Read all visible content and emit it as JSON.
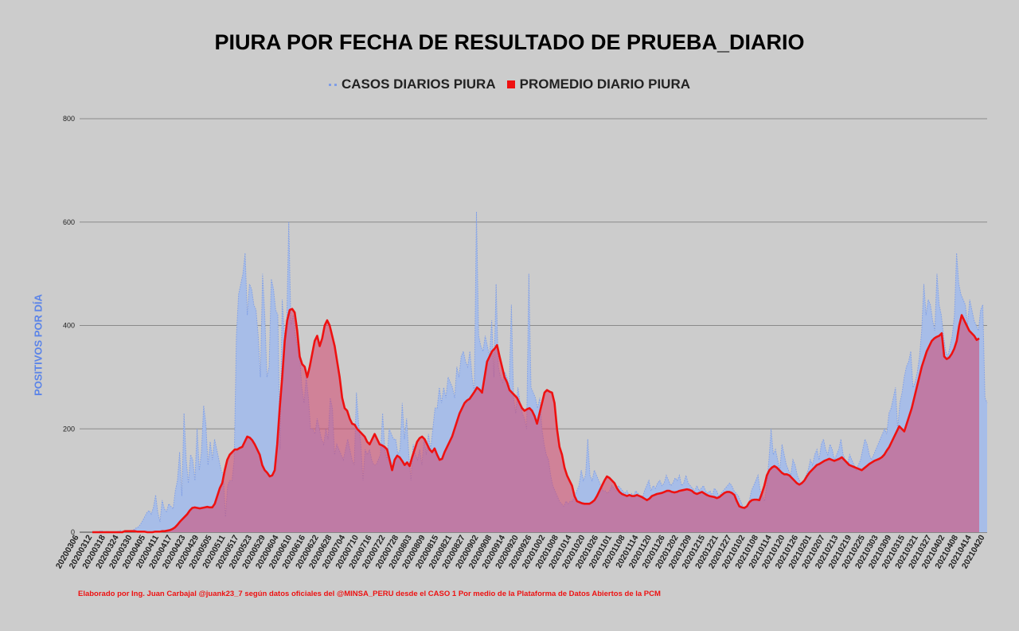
{
  "chart_data": {
    "type": "area",
    "title": "PIURA POR FECHA DE RESULTADO DE PRUEBA_DIARIO",
    "ylabel": "POSITIVOS POR DÍA",
    "xlabel": "",
    "ylim": [
      0,
      800
    ],
    "yticks": [
      0,
      200,
      400,
      600,
      800
    ],
    "grid": true,
    "legend_position": "top-center",
    "x_tick_labels": [
      "20200306",
      "20200312",
      "20200318",
      "20200324",
      "20200330",
      "20200405",
      "20200411",
      "20200417",
      "20200423",
      "20200429",
      "20200505",
      "20200511",
      "20200517",
      "20200523",
      "20200529",
      "20200604",
      "20200610",
      "20200616",
      "20200622",
      "20200628",
      "20200704",
      "20200710",
      "20200716",
      "20200722",
      "20200728",
      "20200803",
      "20200809",
      "20200815",
      "20200821",
      "20200827",
      "20200902",
      "20200908",
      "20200914",
      "20200920",
      "20200926",
      "20201002",
      "20201008",
      "20201014",
      "20201020",
      "20201026",
      "20201101",
      "20201108",
      "20201114",
      "20201120",
      "20201126",
      "20201202",
      "20201209",
      "20201215",
      "20201221",
      "20201227",
      "20210102",
      "20210108",
      "20210114",
      "20210120",
      "20210126",
      "20210201",
      "20210207",
      "20210213",
      "20210219",
      "20210225",
      "20210303",
      "20210309",
      "20210315",
      "20210321",
      "20210327",
      "20210402",
      "20210408",
      "20210414",
      "20210420"
    ],
    "series": [
      {
        "name": "CASOS DIARIOS PIURA",
        "color": "#7f9ee6",
        "style": "dotted-area",
        "values": [
          0,
          0,
          0,
          1,
          3,
          1,
          0,
          2,
          0,
          0,
          0,
          0,
          2,
          3,
          1,
          1,
          2,
          2,
          3,
          5,
          8,
          10,
          15,
          22,
          30,
          38,
          42,
          35,
          48,
          72,
          38,
          20,
          62,
          45,
          40,
          55,
          50,
          45,
          80,
          100,
          155,
          70,
          230,
          140,
          95,
          150,
          140,
          100,
          200,
          120,
          155,
          245,
          210,
          130,
          175,
          140,
          180,
          160,
          140,
          120,
          110,
          30,
          90,
          100,
          100,
          140,
          380,
          460,
          480,
          500,
          540,
          420,
          480,
          470,
          440,
          430,
          380,
          300,
          500,
          420,
          300,
          320,
          490,
          470,
          430,
          420,
          160,
          450,
          380,
          390,
          600,
          400,
          420,
          380,
          360,
          340,
          280,
          250,
          300,
          260,
          200,
          200,
          190,
          220,
          200,
          180,
          170,
          200,
          180,
          260,
          240,
          150,
          170,
          160,
          150,
          140,
          160,
          180,
          160,
          140,
          130,
          270,
          210,
          170,
          100,
          160,
          150,
          160,
          140,
          130,
          130,
          140,
          150,
          230,
          160,
          140,
          200,
          190,
          180,
          180,
          150,
          160,
          250,
          180,
          220,
          150,
          100,
          170,
          150,
          140,
          160,
          130,
          180,
          150,
          190,
          160,
          200,
          240,
          240,
          280,
          250,
          280,
          260,
          300,
          290,
          280,
          260,
          320,
          300,
          340,
          350,
          330,
          320,
          350,
          300,
          270,
          620,
          380,
          360,
          350,
          380,
          360,
          340,
          410,
          300,
          480,
          320,
          300,
          290,
          310,
          300,
          280,
          440,
          260,
          230,
          280,
          250,
          230,
          220,
          200,
          500,
          280,
          270,
          260,
          240,
          260,
          200,
          170,
          150,
          140,
          110,
          90,
          80,
          70,
          60,
          55,
          50,
          60,
          55,
          60,
          60,
          70,
          80,
          90,
          120,
          100,
          110,
          180,
          110,
          100,
          120,
          110,
          100,
          90,
          80,
          80,
          75,
          80,
          90,
          85,
          80,
          90,
          85,
          80,
          75,
          80,
          70,
          75,
          70,
          80,
          75,
          70,
          65,
          80,
          90,
          100,
          80,
          90,
          85,
          95,
          100,
          90,
          95,
          110,
          100,
          90,
          95,
          105,
          100,
          110,
          90,
          95,
          110,
          95,
          90,
          85,
          80,
          90,
          80,
          85,
          90,
          80,
          75,
          80,
          70,
          85,
          80,
          70,
          75,
          80,
          85,
          90,
          95,
          90,
          80,
          75,
          70,
          60,
          50,
          45,
          50,
          60,
          80,
          90,
          100,
          110,
          80,
          70,
          60,
          90,
          140,
          200,
          150,
          160,
          140,
          120,
          170,
          150,
          130,
          120,
          110,
          140,
          130,
          110,
          100,
          95,
          100,
          110,
          120,
          140,
          130,
          150,
          160,
          140,
          170,
          180,
          160,
          150,
          170,
          160,
          140,
          150,
          160,
          180,
          150,
          140,
          130,
          150,
          140,
          130,
          120,
          130,
          140,
          160,
          180,
          170,
          150,
          140,
          150,
          160,
          170,
          180,
          190,
          200,
          190,
          230,
          240,
          260,
          280,
          200,
          250,
          270,
          300,
          320,
          330,
          350,
          280,
          290,
          310,
          340,
          390,
          480,
          420,
          450,
          440,
          410,
          390,
          500,
          440,
          420,
          380,
          350,
          340,
          360,
          380,
          420,
          540,
          480,
          460,
          450,
          440,
          400,
          450,
          430,
          410,
          400,
          390,
          430,
          440,
          260,
          250
        ]
      },
      {
        "name": "PROMEDIO DIARIO PIURA",
        "color": "#ee1111",
        "style": "line",
        "values": [
          0,
          0,
          0,
          0,
          0,
          0,
          0,
          0,
          0,
          0,
          0,
          0,
          0,
          2,
          2,
          2,
          2,
          2,
          1,
          1,
          1,
          1,
          0,
          0,
          0,
          1,
          1,
          1,
          2,
          2,
          3,
          4,
          6,
          9,
          14,
          20,
          25,
          30,
          35,
          42,
          47,
          48,
          47,
          46,
          47,
          48,
          49,
          48,
          48,
          55,
          70,
          85,
          95,
          120,
          140,
          150,
          155,
          160,
          160,
          163,
          165,
          175,
          185,
          183,
          178,
          170,
          160,
          150,
          130,
          120,
          115,
          108,
          110,
          120,
          170,
          240,
          300,
          370,
          410,
          430,
          432,
          425,
          390,
          340,
          325,
          320,
          300,
          320,
          345,
          370,
          380,
          360,
          375,
          400,
          410,
          400,
          380,
          360,
          330,
          300,
          260,
          240,
          235,
          220,
          210,
          208,
          200,
          195,
          190,
          185,
          175,
          170,
          180,
          190,
          180,
          170,
          168,
          165,
          160,
          140,
          120,
          140,
          148,
          145,
          138,
          130,
          135,
          128,
          145,
          160,
          175,
          182,
          185,
          180,
          170,
          160,
          155,
          162,
          150,
          140,
          142,
          155,
          165,
          175,
          185,
          200,
          215,
          230,
          240,
          250,
          255,
          258,
          265,
          272,
          280,
          276,
          270,
          300,
          330,
          340,
          350,
          355,
          362,
          340,
          320,
          300,
          290,
          275,
          270,
          265,
          260,
          250,
          240,
          235,
          238,
          240,
          235,
          225,
          210,
          230,
          250,
          270,
          275,
          272,
          270,
          250,
          200,
          165,
          150,
          125,
          110,
          100,
          90,
          70,
          60,
          58,
          56,
          55,
          55,
          55,
          58,
          62,
          70,
          80,
          90,
          100,
          108,
          105,
          100,
          95,
          85,
          78,
          74,
          72,
          70,
          72,
          70,
          70,
          72,
          70,
          68,
          65,
          62,
          65,
          70,
          72,
          74,
          75,
          76,
          78,
          80,
          80,
          78,
          77,
          78,
          80,
          81,
          82,
          83,
          82,
          80,
          76,
          74,
          76,
          78,
          75,
          72,
          70,
          69,
          68,
          66,
          68,
          72,
          76,
          78,
          78,
          76,
          72,
          60,
          50,
          48,
          47,
          50,
          58,
          62,
          63,
          63,
          62,
          75,
          90,
          110,
          120,
          125,
          128,
          125,
          120,
          115,
          112,
          112,
          110,
          105,
          100,
          95,
          92,
          95,
          100,
          108,
          115,
          120,
          125,
          130,
          132,
          135,
          138,
          140,
          142,
          140,
          138,
          140,
          142,
          145,
          140,
          135,
          130,
          128,
          126,
          124,
          122,
          120,
          124,
          128,
          132,
          135,
          138,
          140,
          142,
          145,
          150,
          158,
          165,
          175,
          185,
          195,
          205,
          200,
          195,
          210,
          225,
          240,
          260,
          280,
          300,
          320,
          335,
          350,
          360,
          370,
          375,
          378,
          380,
          385,
          340,
          335,
          338,
          345,
          355,
          370,
          400,
          420,
          410,
          400,
          390,
          385,
          380,
          372,
          375
        ]
      }
    ]
  },
  "footer": "Elaborado por Ing. Juan Carbajal @juank23_7 según datos oficiales del @MINSA_PERU desde el CASO 1 Por medio de la Plataforma de Datos Abiertos de la PCM"
}
